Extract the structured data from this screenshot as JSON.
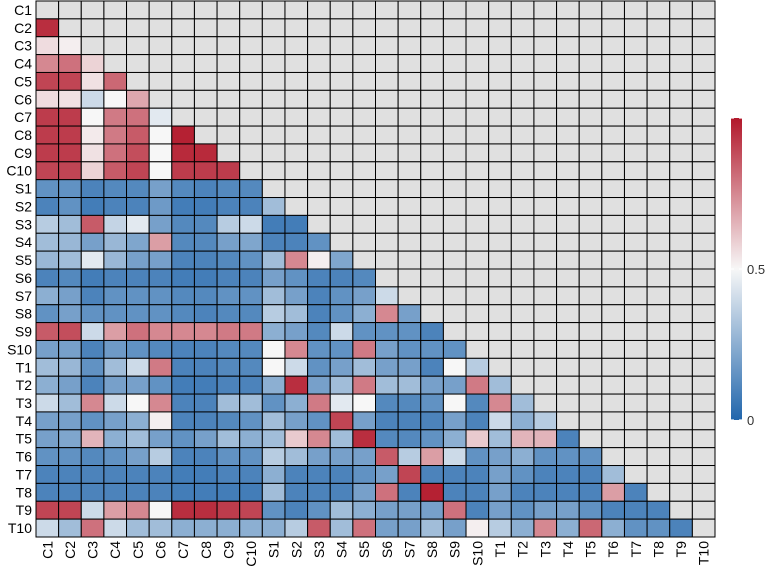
{
  "chart_data": {
    "type": "heatmap",
    "title": "",
    "xlabel": "",
    "ylabel": "",
    "rows": [
      "C1",
      "C2",
      "C3",
      "C4",
      "C5",
      "C6",
      "C7",
      "C8",
      "C9",
      "C10",
      "S1",
      "S2",
      "S3",
      "S4",
      "S5",
      "S6",
      "S7",
      "S8",
      "S9",
      "S10",
      "T1",
      "T2",
      "T3",
      "T4",
      "T5",
      "T6",
      "T7",
      "T8",
      "T9",
      "T10"
    ],
    "columns": [
      "C1",
      "C2",
      "C3",
      "C4",
      "C5",
      "C6",
      "C7",
      "C8",
      "C9",
      "C10",
      "S1",
      "S2",
      "S3",
      "S4",
      "S5",
      "S6",
      "S7",
      "S8",
      "S9",
      "S10",
      "T1",
      "T2",
      "T3",
      "T4",
      "T5",
      "T6",
      "T7",
      "T8",
      "T9",
      "T10"
    ],
    "layout": "lower-triangular; upper triangle and diagonal shown as gray",
    "colorscale": {
      "low_color": "#2166ac",
      "mid_color": "#f7f7f7",
      "high_color": "#b2182b",
      "na_color": "#e0e0e0",
      "range": [
        0,
        1
      ]
    },
    "colorbar": {
      "labels": [
        "0.5",
        "0"
      ],
      "label_values": [
        0.5,
        0
      ]
    },
    "lower_values": [
      [
        0.95
      ],
      [
        0.56,
        0.52
      ],
      [
        0.75,
        0.8,
        0.58
      ],
      [
        0.9,
        0.9,
        0.55,
        0.82
      ],
      [
        0.56,
        0.55,
        0.4,
        0.5,
        0.68
      ],
      [
        0.92,
        0.92,
        0.5,
        0.78,
        0.8,
        0.45
      ],
      [
        0.92,
        0.92,
        0.53,
        0.78,
        0.85,
        0.5,
        0.98
      ],
      [
        0.92,
        0.92,
        0.55,
        0.8,
        0.88,
        0.5,
        0.96,
        0.96
      ],
      [
        0.9,
        0.9,
        0.58,
        0.85,
        0.9,
        0.5,
        0.92,
        0.92,
        0.92
      ],
      [
        0.15,
        0.15,
        0.1,
        0.12,
        0.12,
        0.2,
        0.12,
        0.1,
        0.12,
        0.12
      ],
      [
        0.1,
        0.15,
        0.08,
        0.1,
        0.1,
        0.18,
        0.08,
        0.08,
        0.1,
        0.1,
        0.3
      ],
      [
        0.35,
        0.3,
        0.85,
        0.38,
        0.45,
        0.2,
        0.12,
        0.12,
        0.35,
        0.4,
        0.08,
        0.08
      ],
      [
        0.3,
        0.28,
        0.2,
        0.28,
        0.22,
        0.7,
        0.12,
        0.12,
        0.2,
        0.22,
        0.1,
        0.1,
        0.15
      ],
      [
        0.28,
        0.3,
        0.45,
        0.28,
        0.2,
        0.2,
        0.1,
        0.1,
        0.12,
        0.15,
        0.3,
        0.75,
        0.52,
        0.22
      ],
      [
        0.1,
        0.12,
        0.08,
        0.1,
        0.1,
        0.1,
        0.08,
        0.08,
        0.1,
        0.1,
        0.2,
        0.15,
        0.1,
        0.1,
        0.12
      ],
      [
        0.25,
        0.2,
        0.1,
        0.15,
        0.15,
        0.15,
        0.12,
        0.12,
        0.15,
        0.15,
        0.3,
        0.2,
        0.1,
        0.15,
        0.2,
        0.4
      ],
      [
        0.15,
        0.2,
        0.15,
        0.15,
        0.15,
        0.15,
        0.12,
        0.1,
        0.12,
        0.12,
        0.35,
        0.3,
        0.1,
        0.15,
        0.25,
        0.75,
        0.2
      ],
      [
        0.85,
        0.88,
        0.4,
        0.7,
        0.8,
        0.75,
        0.75,
        0.75,
        0.78,
        0.78,
        0.25,
        0.2,
        0.12,
        0.4,
        0.15,
        0.15,
        0.15,
        0.1
      ],
      [
        0.2,
        0.2,
        0.1,
        0.18,
        0.15,
        0.12,
        0.1,
        0.1,
        0.12,
        0.12,
        0.5,
        0.75,
        0.15,
        0.15,
        0.78,
        0.2,
        0.15,
        0.15,
        0.15
      ],
      [
        0.3,
        0.28,
        0.15,
        0.3,
        0.4,
        0.78,
        0.1,
        0.1,
        0.12,
        0.12,
        0.5,
        0.4,
        0.15,
        0.2,
        0.3,
        0.2,
        0.2,
        0.1,
        0.5,
        0.35
      ],
      [
        0.25,
        0.2,
        0.1,
        0.2,
        0.2,
        0.15,
        0.08,
        0.08,
        0.1,
        0.1,
        0.25,
        0.95,
        0.2,
        0.3,
        0.78,
        0.3,
        0.3,
        0.2,
        0.2,
        0.78,
        0.3
      ],
      [
        0.4,
        0.3,
        0.75,
        0.4,
        0.5,
        0.75,
        0.1,
        0.1,
        0.3,
        0.3,
        0.15,
        0.25,
        0.78,
        0.45,
        0.5,
        0.12,
        0.12,
        0.15,
        0.5,
        0.12,
        0.75,
        0.3
      ],
      [
        0.2,
        0.2,
        0.15,
        0.2,
        0.25,
        0.52,
        0.1,
        0.1,
        0.12,
        0.15,
        0.3,
        0.2,
        0.15,
        0.9,
        0.2,
        0.1,
        0.1,
        0.1,
        0.2,
        0.1,
        0.4,
        0.25,
        0.35
      ],
      [
        0.2,
        0.22,
        0.65,
        0.25,
        0.3,
        0.2,
        0.15,
        0.2,
        0.3,
        0.25,
        0.3,
        0.6,
        0.75,
        0.3,
        0.95,
        0.12,
        0.12,
        0.15,
        0.25,
        0.6,
        0.3,
        0.65,
        0.65,
        0.1
      ],
      [
        0.15,
        0.15,
        0.12,
        0.15,
        0.2,
        0.35,
        0.1,
        0.1,
        0.15,
        0.15,
        0.35,
        0.3,
        0.2,
        0.2,
        0.2,
        0.85,
        0.35,
        0.7,
        0.4,
        0.15,
        0.2,
        0.25,
        0.15,
        0.15,
        0.15
      ],
      [
        0.1,
        0.1,
        0.1,
        0.1,
        0.1,
        0.1,
        0.08,
        0.08,
        0.1,
        0.1,
        0.25,
        0.1,
        0.1,
        0.1,
        0.15,
        0.2,
        0.9,
        0.1,
        0.1,
        0.1,
        0.2,
        0.15,
        0.1,
        0.1,
        0.1,
        0.3
      ],
      [
        0.1,
        0.1,
        0.1,
        0.1,
        0.1,
        0.1,
        0.08,
        0.08,
        0.08,
        0.08,
        0.3,
        0.1,
        0.1,
        0.1,
        0.2,
        0.8,
        0.1,
        0.98,
        0.1,
        0.1,
        0.2,
        0.1,
        0.1,
        0.1,
        0.1,
        0.7,
        0.1
      ],
      [
        0.9,
        0.9,
        0.4,
        0.7,
        0.75,
        0.5,
        0.95,
        0.95,
        0.92,
        0.9,
        0.15,
        0.1,
        0.15,
        0.3,
        0.25,
        0.2,
        0.2,
        0.2,
        0.8,
        0.1,
        0.2,
        0.15,
        0.2,
        0.2,
        0.15,
        0.1,
        0.1,
        0.1
      ],
      [
        0.4,
        0.3,
        0.8,
        0.4,
        0.3,
        0.3,
        0.25,
        0.25,
        0.25,
        0.25,
        0.25,
        0.35,
        0.85,
        0.3,
        0.8,
        0.2,
        0.2,
        0.3,
        0.2,
        0.52,
        0.35,
        0.25,
        0.75,
        0.25,
        0.82,
        0.25,
        0.15,
        0.15,
        0.1
      ]
    ]
  }
}
